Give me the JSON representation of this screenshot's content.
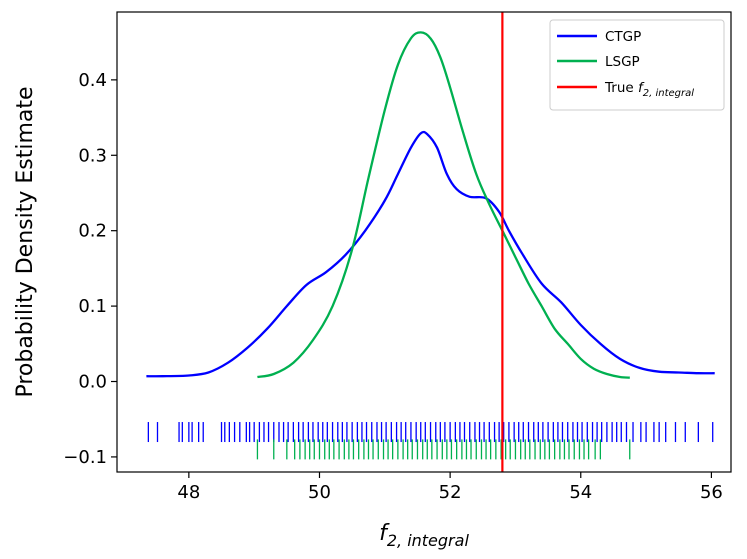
{
  "chart_data": {
    "type": "line",
    "title": "",
    "xlabel_main": "f",
    "xlabel_sub": "2, integral",
    "ylabel": "Probability Density Estimate",
    "xlim": [
      46.9,
      56.3
    ],
    "ylim": [
      -0.12,
      0.49
    ],
    "xticks": [
      48,
      50,
      52,
      54,
      56
    ],
    "xtick_labels": [
      "48",
      "50",
      "52",
      "54",
      "56"
    ],
    "yticks": [
      -0.1,
      0.0,
      0.1,
      0.2,
      0.3,
      0.4
    ],
    "ytick_labels": [
      "−0.1",
      "0.0",
      "0.1",
      "0.2",
      "0.3",
      "0.4"
    ],
    "true_value": 52.8,
    "series": [
      {
        "name": "CTGP",
        "color": "#0000ff",
        "x": [
          47.35,
          47.6,
          48.0,
          48.3,
          48.6,
          48.9,
          49.2,
          49.5,
          49.8,
          50.1,
          50.4,
          50.7,
          51.0,
          51.2,
          51.4,
          51.55,
          51.65,
          51.8,
          51.95,
          52.1,
          52.3,
          52.55,
          52.75,
          52.9,
          53.1,
          53.4,
          53.7,
          54.0,
          54.3,
          54.6,
          54.9,
          55.2,
          55.5,
          55.8,
          56.05
        ],
        "y": [
          0.007,
          0.007,
          0.008,
          0.012,
          0.025,
          0.045,
          0.07,
          0.1,
          0.128,
          0.145,
          0.168,
          0.2,
          0.24,
          0.275,
          0.31,
          0.329,
          0.328,
          0.31,
          0.275,
          0.255,
          0.245,
          0.243,
          0.225,
          0.2,
          0.17,
          0.13,
          0.105,
          0.075,
          0.05,
          0.03,
          0.018,
          0.013,
          0.012,
          0.011,
          0.011
        ],
        "rug_y": -0.067,
        "rug": [
          47.38,
          47.52,
          47.85,
          47.9,
          48.0,
          48.05,
          48.15,
          48.22,
          48.5,
          48.55,
          48.62,
          48.7,
          48.78,
          48.88,
          48.93,
          49.0,
          49.08,
          49.15,
          49.22,
          49.3,
          49.38,
          49.45,
          49.52,
          49.6,
          49.68,
          49.75,
          49.83,
          49.9,
          49.98,
          50.05,
          50.12,
          50.2,
          50.28,
          50.35,
          50.42,
          50.5,
          50.58,
          50.65,
          50.72,
          50.8,
          50.88,
          50.95,
          51.02,
          51.1,
          51.18,
          51.25,
          51.32,
          51.4,
          51.48,
          51.55,
          51.62,
          51.7,
          51.78,
          51.85,
          51.92,
          52.0,
          52.08,
          52.15,
          52.22,
          52.3,
          52.38,
          52.45,
          52.52,
          52.6,
          52.68,
          52.75,
          52.82,
          52.9,
          52.98,
          53.05,
          53.12,
          53.2,
          53.28,
          53.35,
          53.42,
          53.5,
          53.58,
          53.65,
          53.72,
          53.8,
          53.88,
          53.95,
          54.02,
          54.1,
          54.18,
          54.25,
          54.32,
          54.4,
          54.48,
          54.55,
          54.62,
          54.7,
          54.8,
          54.92,
          55.0,
          55.12,
          55.2,
          55.3,
          55.45,
          55.6,
          55.8,
          56.02
        ]
      },
      {
        "name": "LSGP",
        "color": "#00b050",
        "x": [
          49.05,
          49.3,
          49.6,
          49.9,
          50.2,
          50.5,
          50.75,
          51.0,
          51.2,
          51.4,
          51.55,
          51.7,
          51.85,
          52.0,
          52.2,
          52.4,
          52.6,
          52.8,
          53.0,
          53.2,
          53.4,
          53.6,
          53.8,
          54.0,
          54.2,
          54.4,
          54.6,
          54.75
        ],
        "y": [
          0.006,
          0.01,
          0.025,
          0.055,
          0.1,
          0.175,
          0.27,
          0.36,
          0.42,
          0.455,
          0.463,
          0.455,
          0.43,
          0.39,
          0.33,
          0.275,
          0.235,
          0.2,
          0.165,
          0.13,
          0.1,
          0.07,
          0.05,
          0.03,
          0.017,
          0.01,
          0.006,
          0.005
        ],
        "rug_y": -0.09,
        "rug": [
          49.05,
          49.3,
          49.5,
          49.62,
          49.7,
          49.78,
          49.85,
          49.92,
          50.0,
          50.08,
          50.15,
          50.22,
          50.3,
          50.38,
          50.45,
          50.52,
          50.6,
          50.68,
          50.75,
          50.82,
          50.9,
          50.98,
          51.05,
          51.12,
          51.2,
          51.28,
          51.35,
          51.42,
          51.5,
          51.58,
          51.65,
          51.72,
          51.8,
          51.88,
          51.95,
          52.02,
          52.1,
          52.18,
          52.25,
          52.32,
          52.4,
          52.48,
          52.55,
          52.62,
          52.7,
          52.78,
          52.85,
          52.92,
          53.0,
          53.08,
          53.15,
          53.22,
          53.3,
          53.38,
          53.45,
          53.52,
          53.6,
          53.68,
          53.75,
          53.82,
          53.9,
          53.98,
          54.05,
          54.12,
          54.22,
          54.3,
          54.75
        ]
      }
    ],
    "legend": {
      "location": "top-right",
      "items": [
        {
          "label": "CTGP",
          "color": "#0000ff"
        },
        {
          "label": "LSGP",
          "color": "#00b050"
        },
        {
          "label_main": "True ",
          "label_f": "f",
          "label_sub": "2, integral",
          "color": "#ff0000"
        }
      ]
    }
  }
}
